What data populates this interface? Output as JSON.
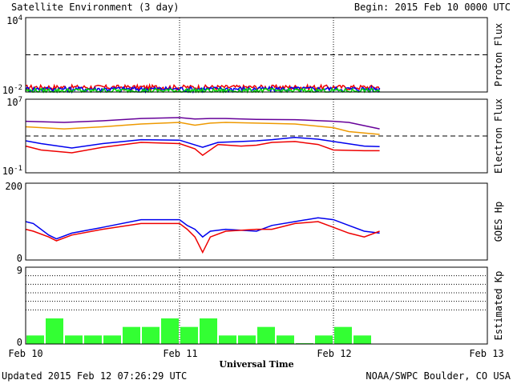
{
  "header": {
    "title": "Satellite Environment (3 day)",
    "begin": "Begin:  2015 Feb 10 0000 UTC"
  },
  "footer": {
    "updated": "Updated 2015 Feb 12 07:26:29 UTC",
    "credit": "NOAA/SWPC Boulder, CO USA"
  },
  "colors": {
    "red": "#ee0000",
    "blue": "#0000ee",
    "green": "#00dd00",
    "purple": "#660099",
    "orange": "#ee9900",
    "kp_bar": "#33ff33"
  },
  "chart_data": [
    {
      "type": "line",
      "ylabel": "Proton Flux",
      "yscale": "log",
      "ylim": [
        0.01,
        10000
      ],
      "yticks": [
        "10^4",
        "10^-2"
      ],
      "threshold": 10,
      "xlim": [
        0,
        3
      ],
      "x_end": 2.3,
      "series": [
        {
          "color": "red",
          "base": 0.025
        },
        {
          "color": "blue",
          "base": 0.018
        },
        {
          "color": "green",
          "base": 0.013
        }
      ]
    },
    {
      "type": "line",
      "ylabel": "Electron Flux",
      "yscale": "log",
      "ylim": [
        0.1,
        10000000
      ],
      "yticks": [
        "10^7",
        "10^-1"
      ],
      "threshold": 1000,
      "xlim": [
        0,
        3
      ],
      "series": [
        {
          "color": "purple",
          "x": [
            0,
            0.25,
            0.5,
            0.75,
            1.0,
            1.1,
            1.2,
            1.3,
            1.5,
            1.75,
            2.0,
            2.1,
            2.3
          ],
          "y": [
            40000,
            30000,
            45000,
            80000,
            100000,
            70000,
            80000,
            80000,
            65000,
            60000,
            40000,
            30000,
            6000
          ]
        },
        {
          "color": "orange",
          "x": [
            0,
            0.25,
            0.5,
            0.75,
            1.0,
            1.1,
            1.2,
            1.3,
            1.5,
            1.75,
            2.0,
            2.1,
            2.3
          ],
          "y": [
            10000,
            6000,
            10000,
            20000,
            30000,
            15000,
            25000,
            30000,
            25000,
            20000,
            8000,
            3000,
            1500
          ]
        },
        {
          "color": "blue",
          "x": [
            0,
            0.1,
            0.3,
            0.5,
            0.75,
            1.0,
            1.15,
            1.25,
            1.4,
            1.5,
            1.6,
            1.75,
            1.9,
            2.0,
            2.2,
            2.3
          ],
          "y": [
            300,
            150,
            50,
            150,
            400,
            350,
            60,
            200,
            250,
            300,
            400,
            700,
            450,
            250,
            80,
            70
          ]
        },
        {
          "color": "red",
          "x": [
            0,
            0.1,
            0.3,
            0.5,
            0.75,
            1.0,
            1.1,
            1.15,
            1.25,
            1.4,
            1.5,
            1.6,
            1.75,
            1.9,
            2.0,
            2.2,
            2.3
          ],
          "y": [
            80,
            30,
            15,
            60,
            200,
            150,
            40,
            8,
            120,
            80,
            100,
            200,
            250,
            120,
            30,
            25,
            25
          ]
        }
      ]
    },
    {
      "type": "line",
      "ylabel": "GOES Hp",
      "ylim": [
        0,
        200
      ],
      "yticks": [
        "200",
        "0"
      ],
      "xlim": [
        0,
        3
      ],
      "series": [
        {
          "color": "blue",
          "x": [
            0,
            0.05,
            0.15,
            0.2,
            0.3,
            0.5,
            0.75,
            1.0,
            1.05,
            1.1,
            1.15,
            1.2,
            1.3,
            1.5,
            1.6,
            1.75,
            1.9,
            2.0,
            2.1,
            2.2,
            2.3
          ],
          "y": [
            100,
            95,
            65,
            55,
            70,
            85,
            105,
            105,
            90,
            80,
            60,
            75,
            80,
            75,
            90,
            100,
            110,
            105,
            90,
            75,
            70
          ]
        },
        {
          "color": "red",
          "x": [
            0,
            0.05,
            0.15,
            0.2,
            0.3,
            0.5,
            0.75,
            1.0,
            1.05,
            1.1,
            1.15,
            1.2,
            1.3,
            1.5,
            1.6,
            1.75,
            1.9,
            2.0,
            2.1,
            2.2,
            2.3
          ],
          "y": [
            80,
            75,
            60,
            50,
            65,
            80,
            95,
            95,
            80,
            60,
            20,
            60,
            75,
            80,
            80,
            95,
            100,
            85,
            70,
            60,
            75
          ]
        }
      ]
    },
    {
      "type": "bar",
      "ylabel": "Estimated Kp",
      "ylim": [
        0,
        9
      ],
      "yticks": [
        "9",
        "0"
      ],
      "gridlines": [
        4,
        5,
        6,
        7,
        8,
        9
      ],
      "xlim": [
        0,
        3
      ],
      "bar_hours": 3,
      "values": [
        1,
        3,
        1,
        1,
        1,
        2,
        2,
        3,
        2,
        3,
        1,
        1,
        2,
        1,
        0.1,
        1,
        2,
        1
      ]
    }
  ],
  "x_axis": {
    "label": "Universal Time",
    "ticks": [
      "Feb 10",
      "Feb 11",
      "Feb 12",
      "Feb 13"
    ]
  }
}
